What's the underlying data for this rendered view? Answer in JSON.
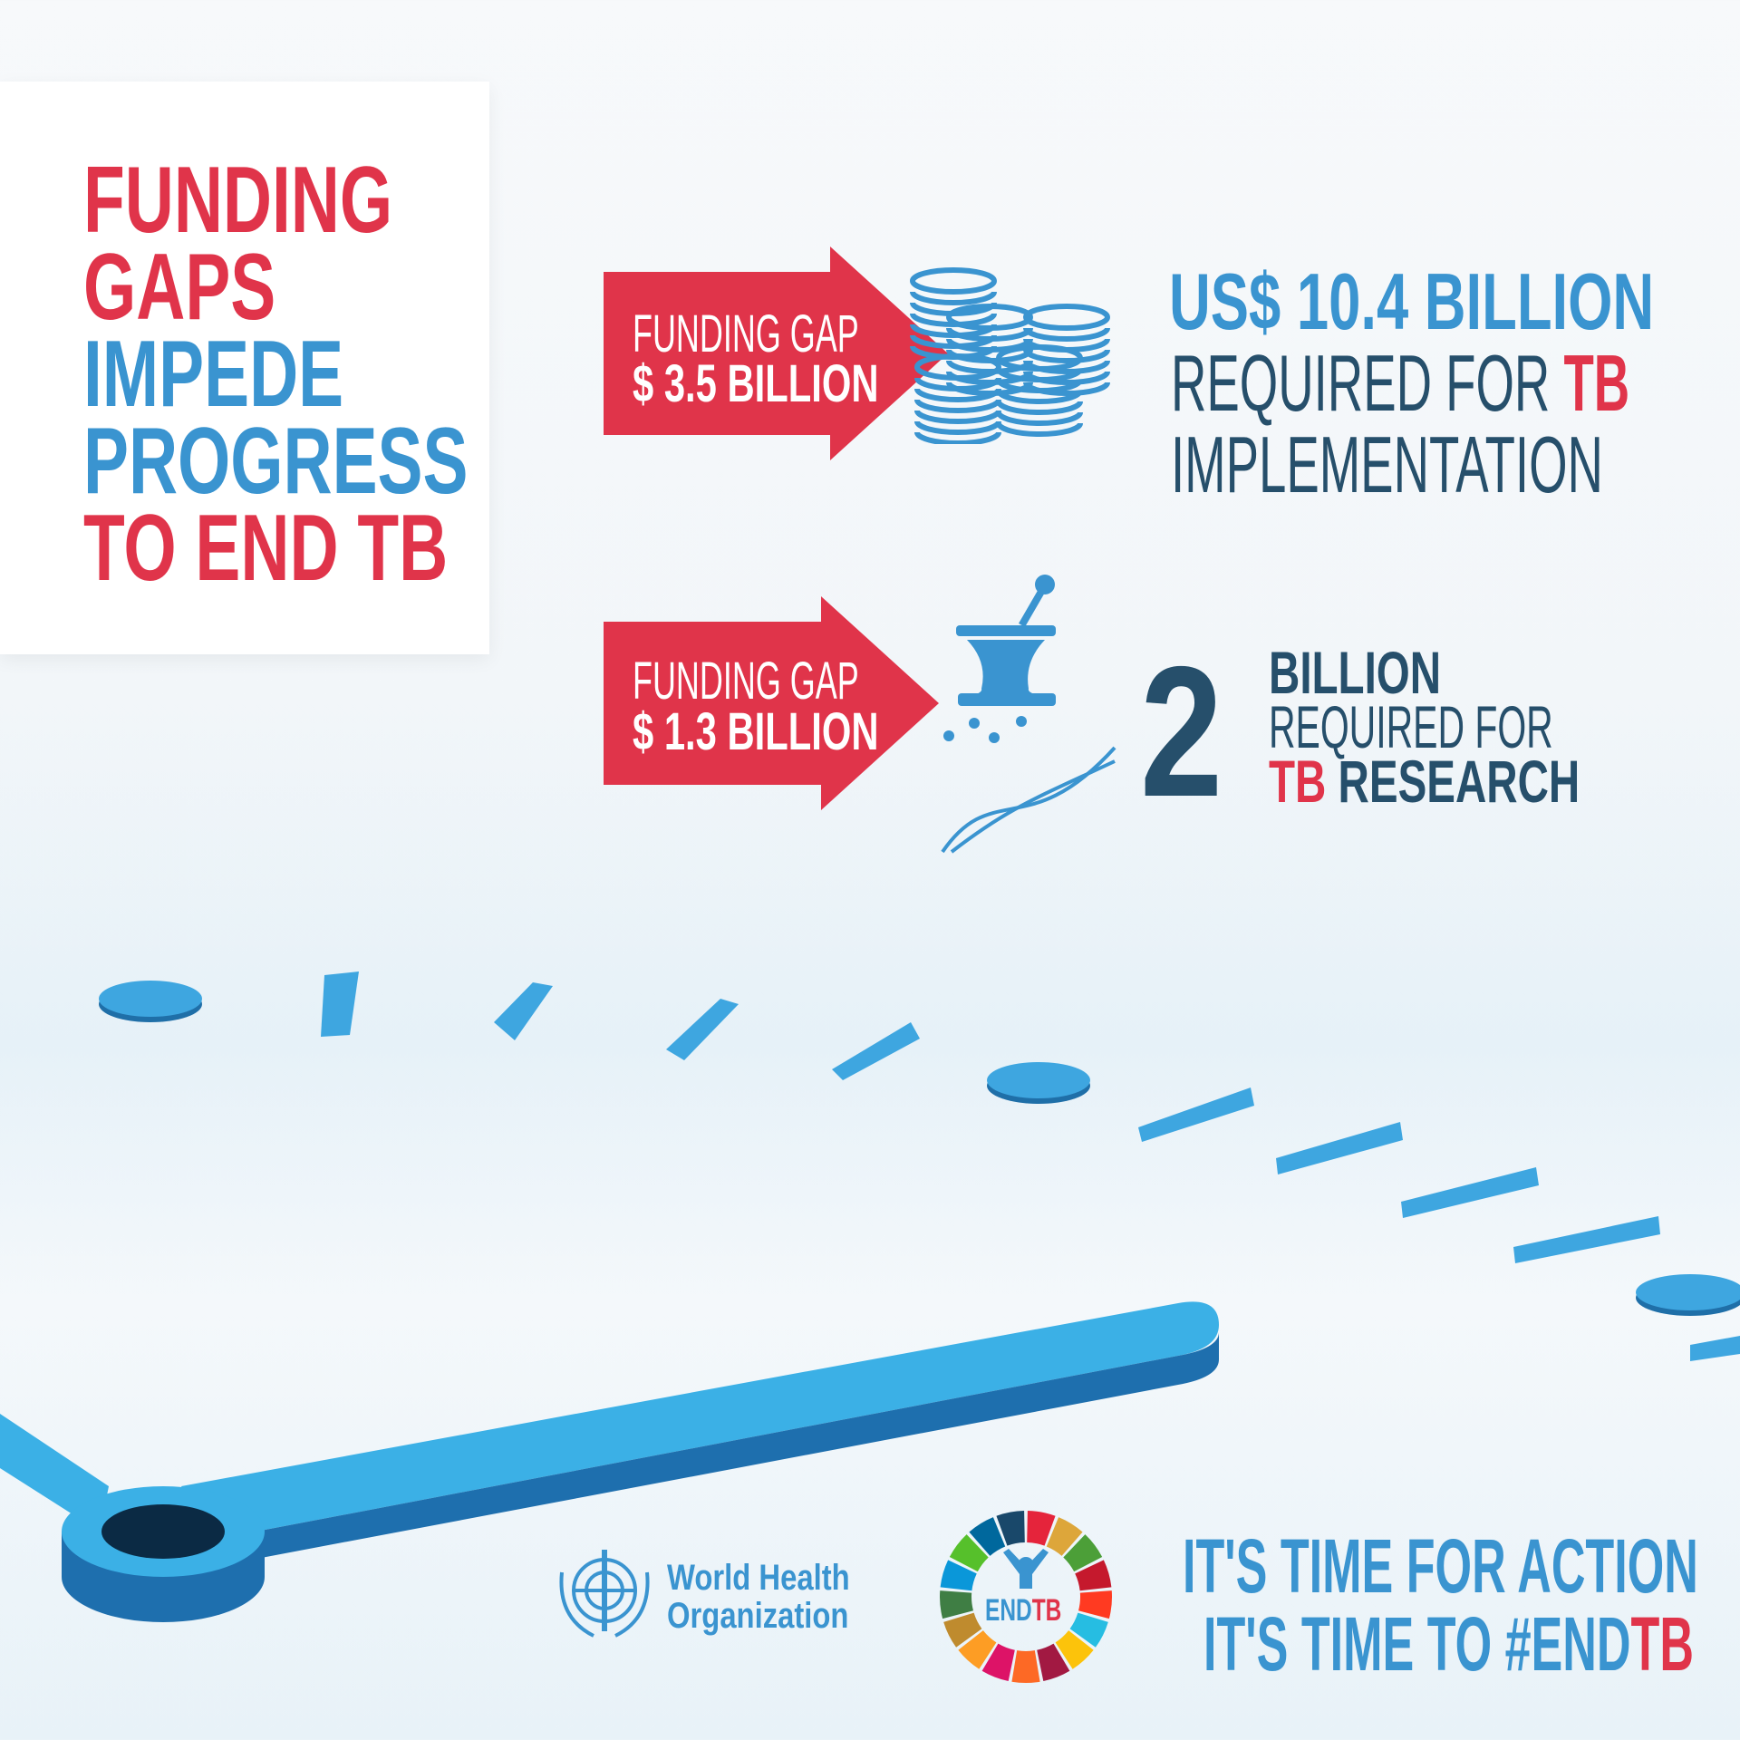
{
  "headline": {
    "lines": [
      {
        "text": "FUNDING",
        "color": "#e0344a"
      },
      {
        "text": "GAPS",
        "color": "#e0344a"
      },
      {
        "text": "IMPEDE",
        "color": "#3a94d0"
      },
      {
        "text": "PROGRESS",
        "color": "#3a94d0"
      },
      {
        "text": "TO END TB",
        "color": "#e0344a"
      }
    ]
  },
  "implementation": {
    "gap_label": "FUNDING GAP",
    "gap_amount": "$ 3.5 BILLION",
    "icon": "coin-stacks-icon",
    "required_amount": "US$ 10.4 BILLION",
    "required_text": "REQUIRED FOR",
    "required_tb": "TB",
    "required_purpose": "IMPLEMENTATION"
  },
  "research": {
    "gap_label": "FUNDING GAP",
    "gap_amount": "$ 1.3 BILLION",
    "icon": "mortar-pestle-dna-icon",
    "number": "2",
    "unit": "BILLION",
    "required_text": "REQUIRED FOR",
    "tb": "TB",
    "purpose": "RESEARCH"
  },
  "logos": {
    "who_line1": "World Health",
    "who_line2": "Organization",
    "endtb_end": "END",
    "endtb_tb": "TB"
  },
  "footer": {
    "line1": "IT'S TIME FOR ACTION",
    "line2_prefix": "IT'S TIME TO #END",
    "line2_tb": "TB"
  },
  "colors": {
    "red": "#e0344a",
    "blue": "#3a94d0",
    "dark": "#264f6b"
  }
}
